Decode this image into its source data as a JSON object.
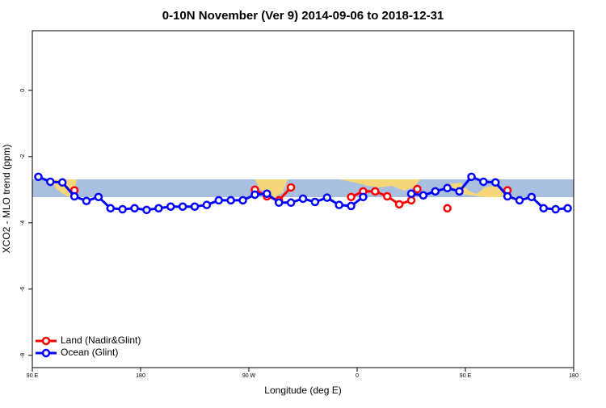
{
  "chart_data": {
    "type": "line",
    "title": "0-10N November (Ver 9)   2014-09-06 to 2018-12-31",
    "x_label": "Longitude (deg E)",
    "y_label": "XCO2 - MLO trend (ppm)",
    "xlim": [
      90,
      540
    ],
    "xticks": [
      {
        "value": 90,
        "label": "90 E"
      },
      180,
      {
        "value": 270,
        "label": "90 W"
      },
      {
        "value": 360,
        "label": "0"
      },
      {
        "value": 450,
        "label": "90 E"
      },
      {
        "value": 540,
        "label": "180"
      }
    ],
    "ylim": [
      -8.37,
      1.8
    ],
    "yticks": [
      0,
      -2,
      -4,
      -6,
      -8
    ],
    "legend": "bottom-left",
    "series": [
      {
        "name": "Land (Nadir&Glint)",
        "color": "#ff0000",
        "x": [
          125,
          275,
          285,
          295,
          305,
          355,
          365,
          375,
          385,
          395,
          405,
          410,
          435,
          485
        ],
        "values": [
          -3.02,
          -3.0,
          -3.2,
          -3.32,
          -2.93,
          -3.22,
          -3.05,
          -3.05,
          -3.2,
          -3.44,
          -3.32,
          -2.98,
          -3.56,
          -3.02
        ]
      },
      {
        "name": "Ocean (Glint)",
        "color": "#0000ff",
        "x": [
          95,
          105,
          115,
          125,
          135,
          145,
          155,
          165,
          175,
          185,
          195,
          205,
          215,
          225,
          235,
          245,
          255,
          265,
          275,
          285,
          295,
          305,
          315,
          325,
          335,
          345,
          355,
          365,
          375,
          385,
          395,
          405,
          415,
          425,
          435,
          445,
          455,
          465,
          475,
          485,
          495,
          505,
          515,
          525,
          535
        ],
        "values": [
          -2.61,
          -2.76,
          -2.78,
          -3.2,
          -3.34,
          -3.22,
          -3.56,
          -3.59,
          -3.56,
          -3.61,
          -3.56,
          -3.51,
          -3.51,
          -3.51,
          -3.46,
          -3.32,
          -3.32,
          -3.32,
          -3.15,
          -3.12,
          -3.39,
          -3.39,
          -3.27,
          -3.37,
          -3.24,
          -3.46,
          -3.49,
          -3.22,
          null,
          null,
          null,
          -3.12,
          -3.17,
          -3.05,
          -2.95,
          -3.05,
          -2.61,
          -2.76,
          -2.78,
          -3.2,
          -3.32,
          -3.22,
          -3.56,
          -3.59,
          -3.56
        ]
      }
    ]
  }
}
